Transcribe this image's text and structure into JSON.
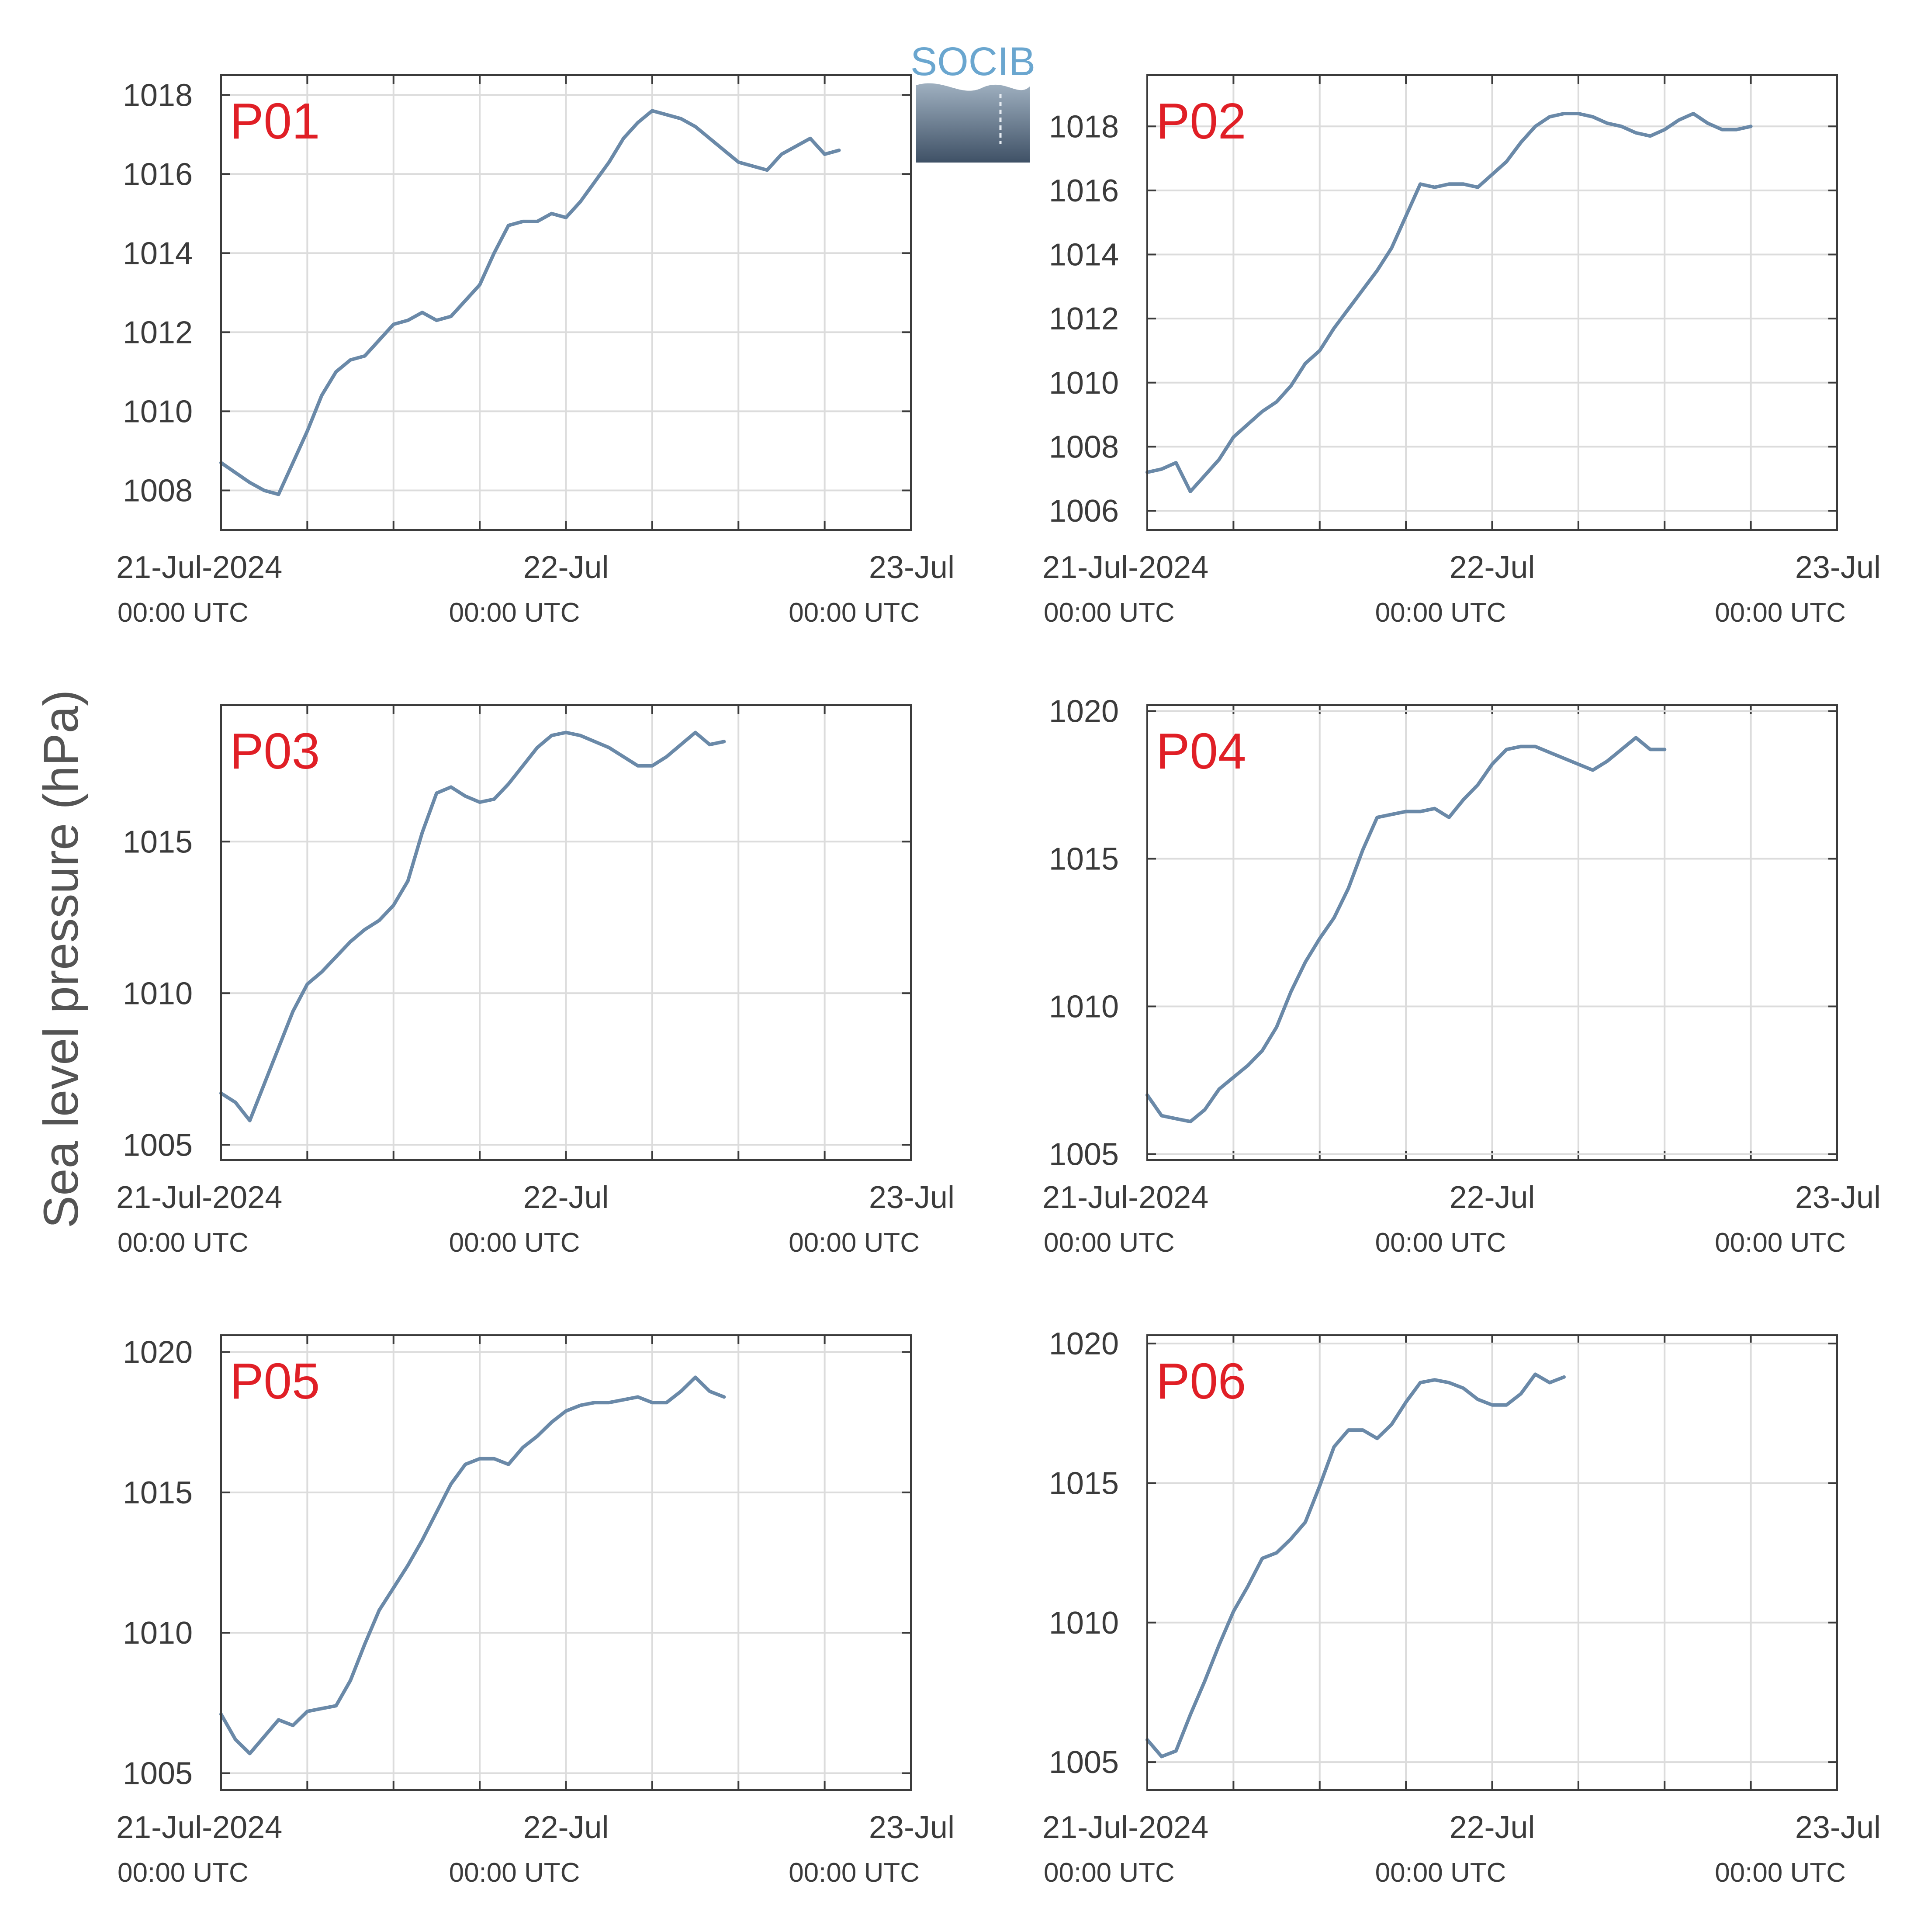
{
  "figure": {
    "ylabel": "Sea level pressure (hPa)",
    "logo_text": "SOCIB",
    "colors": {
      "series": "#6a89a8",
      "label": "#e01f26",
      "grid": "#dcdcdc",
      "axis": "#3b3b3b"
    }
  },
  "chart_data": [
    {
      "type": "line",
      "panel_label": "P01",
      "xlim": [
        "21-Jul-2024 00:00 UTC",
        "23-Jul-2024 00:00 UTC"
      ],
      "ylim": [
        1007,
        1018.5
      ],
      "yticks": [
        1008,
        1010,
        1012,
        1014,
        1016,
        1018
      ],
      "xtick_labels": [
        {
          "main": "21-Jul-2024",
          "sub": "00:00 UTC"
        },
        {
          "main": "22-Jul",
          "sub": "00:00 UTC"
        },
        {
          "main": "23-Jul",
          "sub": "00:00 UTC"
        }
      ],
      "grid": true,
      "series": [
        {
          "x_hours": [
            0,
            2,
            3,
            4,
            5,
            6,
            7,
            8,
            9,
            10,
            11,
            12,
            13,
            14,
            15,
            16,
            17,
            18,
            19,
            20,
            21,
            22,
            23,
            24,
            25,
            26,
            27,
            28,
            29,
            30,
            31,
            32,
            33,
            34,
            35,
            36,
            37,
            38,
            39,
            40,
            41,
            42,
            43,
            44,
            45,
            46,
            47,
            48
          ],
          "y": [
            1008.7,
            1008.2,
            1008.0,
            1007.9,
            1008.7,
            1009.5,
            1010.4,
            1011.0,
            1011.3,
            1011.4,
            1011.8,
            1012.2,
            1012.3,
            1012.5,
            1012.3,
            1012.4,
            1012.8,
            1013.2,
            1014.0,
            1014.7,
            1014.8,
            1014.8,
            1015.0,
            1014.9,
            1015.3,
            1015.8,
            1016.3,
            1016.9,
            1017.3,
            1017.6,
            1017.5,
            1017.4,
            1017.2,
            1016.9,
            1016.6,
            1016.3,
            1016.2,
            1016.1,
            1016.5,
            1016.7,
            1016.9,
            1016.5,
            1016.6,
            null,
            null,
            null,
            null,
            null
          ]
        }
      ]
    },
    {
      "type": "line",
      "panel_label": "P02",
      "xlim": [
        "21-Jul-2024 00:00 UTC",
        "23-Jul-2024 00:00 UTC"
      ],
      "ylim": [
        1005.4,
        1019.6
      ],
      "yticks": [
        1006,
        1008,
        1010,
        1012,
        1014,
        1016,
        1018
      ],
      "xtick_labels": [
        {
          "main": "21-Jul-2024",
          "sub": "00:00 UTC"
        },
        {
          "main": "22-Jul",
          "sub": "00:00 UTC"
        },
        {
          "main": "23-Jul",
          "sub": "00:00 UTC"
        }
      ],
      "grid": true,
      "series": [
        {
          "x_hours": [
            0,
            1,
            2,
            3,
            4,
            5,
            6,
            7,
            8,
            9,
            10,
            11,
            12,
            13,
            14,
            15,
            16,
            17,
            18,
            19,
            20,
            21,
            22,
            23,
            24,
            25,
            26,
            27,
            28,
            29,
            30,
            31,
            32,
            33,
            34,
            35,
            36,
            37,
            38,
            39,
            40,
            41,
            42,
            43,
            44,
            45,
            46,
            47,
            48
          ],
          "y": [
            1007.2,
            1007.3,
            1007.5,
            1006.6,
            1007.1,
            1007.6,
            1008.3,
            1008.7,
            1009.1,
            1009.4,
            1009.9,
            1010.6,
            1011.0,
            1011.7,
            1012.3,
            1012.9,
            1013.5,
            1014.2,
            1015.2,
            1016.2,
            1016.1,
            1016.2,
            1016.2,
            1016.1,
            1016.5,
            1016.9,
            1017.5,
            1018.0,
            1018.3,
            1018.4,
            1018.4,
            1018.3,
            1018.1,
            1018.0,
            1017.8,
            1017.7,
            1017.9,
            1018.2,
            1018.4,
            1018.1,
            1017.9,
            1017.9,
            1018.0,
            null,
            null,
            null,
            null,
            null,
            null
          ]
        }
      ]
    },
    {
      "type": "line",
      "panel_label": "P03",
      "xlim": [
        "21-Jul-2024 00:00 UTC",
        "23-Jul-2024 00:00 UTC"
      ],
      "ylim": [
        1004.5,
        1019.5
      ],
      "yticks": [
        1005,
        1010,
        1015
      ],
      "xtick_labels": [
        {
          "main": "21-Jul-2024",
          "sub": "00:00 UTC"
        },
        {
          "main": "22-Jul",
          "sub": "00:00 UTC"
        },
        {
          "main": "23-Jul",
          "sub": "00:00 UTC"
        }
      ],
      "grid": true,
      "series": [
        {
          "x_hours": [
            0,
            1,
            2,
            3,
            4,
            5,
            6,
            7,
            8,
            9,
            10,
            11,
            12,
            13,
            14,
            15,
            16,
            17,
            18,
            19,
            20,
            21,
            22,
            23,
            24,
            25,
            26,
            27,
            28,
            29,
            30,
            31,
            32,
            33,
            34,
            35,
            36,
            37,
            38,
            39,
            40,
            41,
            42,
            43,
            44,
            45,
            46,
            47,
            48
          ],
          "y": [
            1006.7,
            1006.4,
            1005.8,
            1007.0,
            1008.2,
            1009.4,
            1010.3,
            1010.7,
            1011.2,
            1011.7,
            1012.1,
            1012.4,
            1012.9,
            1013.7,
            1015.3,
            1016.6,
            1016.8,
            1016.5,
            1016.3,
            1016.4,
            1016.9,
            1017.5,
            1018.1,
            1018.5,
            1018.6,
            1018.5,
            1018.3,
            1018.1,
            1017.8,
            1017.5,
            1017.5,
            1017.8,
            1018.2,
            1018.6,
            1018.2,
            1018.3,
            null,
            null,
            null,
            null,
            null,
            null,
            null,
            null,
            null,
            null,
            null,
            null,
            null
          ]
        }
      ]
    },
    {
      "type": "line",
      "panel_label": "P04",
      "xlim": [
        "21-Jul-2024 00:00 UTC",
        "23-Jul-2024 00:00 UTC"
      ],
      "ylim": [
        1004.8,
        1020.2
      ],
      "yticks": [
        1005,
        1010,
        1015,
        1020
      ],
      "xtick_labels": [
        {
          "main": "21-Jul-2024",
          "sub": "00:00 UTC"
        },
        {
          "main": "22-Jul",
          "sub": "00:00 UTC"
        },
        {
          "main": "23-Jul",
          "sub": "00:00 UTC"
        }
      ],
      "grid": true,
      "series": [
        {
          "x_hours": [
            0,
            1,
            2,
            3,
            4,
            5,
            6,
            7,
            8,
            9,
            10,
            11,
            12,
            13,
            14,
            15,
            16,
            17,
            18,
            19,
            20,
            21,
            22,
            23,
            24,
            25,
            26,
            27,
            28,
            29,
            30,
            31,
            32,
            33,
            34,
            35,
            36,
            37,
            38,
            39,
            40,
            41,
            42,
            43,
            44,
            45,
            46,
            47,
            48
          ],
          "y": [
            1007.0,
            1006.3,
            1006.2,
            1006.1,
            1006.5,
            1007.2,
            1007.6,
            1008.0,
            1008.5,
            1009.3,
            1010.5,
            1011.5,
            1012.3,
            1013.0,
            1014.0,
            1015.3,
            1016.4,
            1016.5,
            1016.6,
            1016.6,
            1016.7,
            1016.4,
            1017.0,
            1017.5,
            1018.2,
            1018.7,
            1018.8,
            1018.8,
            1018.6,
            1018.4,
            1018.2,
            1018.0,
            1018.3,
            1018.7,
            1019.1,
            1018.7,
            1018.7,
            null,
            null,
            null,
            null,
            null,
            null,
            null,
            null,
            null,
            null,
            null,
            null
          ]
        }
      ]
    },
    {
      "type": "line",
      "panel_label": "P05",
      "xlim": [
        "21-Jul-2024 00:00 UTC",
        "23-Jul-2024 00:00 UTC"
      ],
      "ylim": [
        1004.4,
        1020.6
      ],
      "yticks": [
        1005,
        1010,
        1015,
        1020
      ],
      "xtick_labels": [
        {
          "main": "21-Jul-2024",
          "sub": "00:00 UTC"
        },
        {
          "main": "22-Jul",
          "sub": "00:00 UTC"
        },
        {
          "main": "23-Jul",
          "sub": "00:00 UTC"
        }
      ],
      "grid": true,
      "series": [
        {
          "x_hours": [
            0,
            1,
            2,
            3,
            4,
            5,
            6,
            7,
            8,
            9,
            10,
            11,
            12,
            13,
            14,
            15,
            16,
            17,
            18,
            19,
            20,
            21,
            22,
            23,
            24,
            25,
            26,
            27,
            28,
            29,
            30,
            31,
            32,
            33,
            34,
            35,
            36,
            37,
            38,
            39,
            40,
            41,
            42,
            43,
            44,
            45,
            46,
            47,
            48
          ],
          "y": [
            1007.1,
            1006.2,
            1005.7,
            1006.3,
            1006.9,
            1006.7,
            1007.2,
            1007.3,
            1007.4,
            1008.3,
            1009.6,
            1010.8,
            1011.6,
            1012.4,
            1013.3,
            1014.3,
            1015.3,
            1016.0,
            1016.2,
            1016.2,
            1016.0,
            1016.6,
            1017.0,
            1017.5,
            1017.9,
            1018.1,
            1018.2,
            1018.2,
            1018.3,
            1018.4,
            1018.2,
            1018.2,
            1018.6,
            1019.1,
            1018.6,
            1018.4,
            null,
            null,
            null,
            null,
            null,
            null,
            null,
            null,
            null,
            null,
            null,
            null,
            null
          ]
        }
      ]
    },
    {
      "type": "line",
      "panel_label": "P06",
      "xlim": [
        "21-Jul-2024 00:00 UTC",
        "23-Jul-2024 00:00 UTC"
      ],
      "ylim": [
        1004.0,
        1020.3
      ],
      "yticks": [
        1005,
        1010,
        1015,
        1020
      ],
      "xtick_labels": [
        {
          "main": "21-Jul-2024",
          "sub": "00:00 UTC"
        },
        {
          "main": "22-Jul",
          "sub": "00:00 UTC"
        },
        {
          "main": "23-Jul",
          "sub": "00:00 UTC"
        }
      ],
      "grid": true,
      "series": [
        {
          "x_hours": [
            0,
            1,
            2,
            3,
            4,
            5,
            6,
            7,
            8,
            9,
            10,
            11,
            12,
            13,
            14,
            15,
            16,
            17,
            18,
            19,
            20,
            21,
            22,
            23,
            24,
            25,
            26,
            27,
            28,
            29,
            30,
            31,
            32,
            33,
            34,
            35,
            36,
            37,
            38,
            39,
            40,
            41,
            42,
            43,
            44,
            45,
            46,
            47,
            48
          ],
          "y": [
            1005.8,
            1005.2,
            1005.4,
            1006.7,
            1007.9,
            1009.2,
            1010.4,
            1011.3,
            1012.3,
            1012.5,
            1013.0,
            1013.6,
            1014.9,
            1016.3,
            1016.9,
            1016.9,
            1016.6,
            1017.1,
            1017.9,
            1018.6,
            1018.7,
            1018.6,
            1018.4,
            1018.0,
            1017.8,
            1017.8,
            1018.2,
            1018.9,
            1018.6,
            1018.8,
            null,
            null,
            null,
            null,
            null,
            null,
            null,
            null,
            null,
            null,
            null,
            null,
            null,
            null,
            null,
            null,
            null,
            null,
            null
          ]
        }
      ]
    }
  ]
}
